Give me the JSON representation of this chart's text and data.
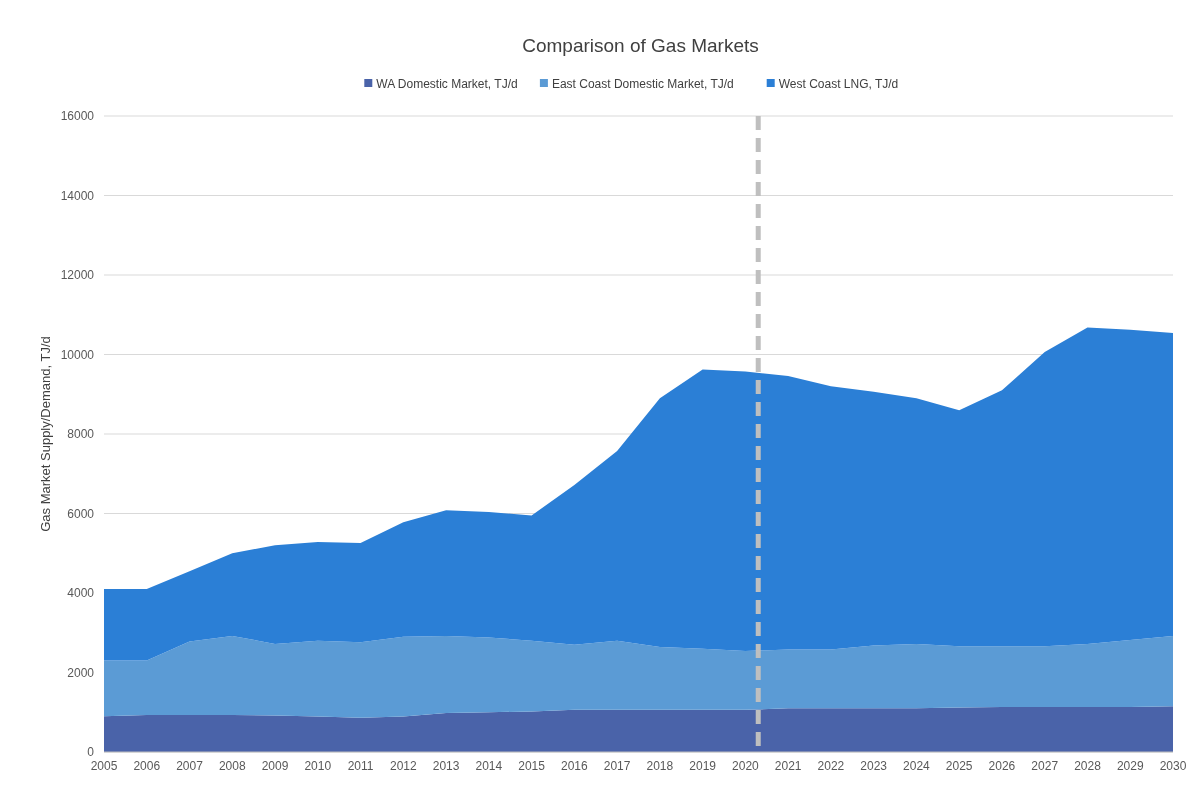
{
  "chart_data": {
    "type": "area",
    "title": "Comparison of Gas Markets",
    "ylabel": "Gas Market Supply/Demand, TJ/d",
    "stacked": true,
    "x": [
      2005,
      2006,
      2007,
      2008,
      2009,
      2010,
      2011,
      2012,
      2013,
      2014,
      2015,
      2016,
      2017,
      2018,
      2019,
      2020,
      2021,
      2022,
      2023,
      2024,
      2025,
      2026,
      2027,
      2028,
      2029,
      2030
    ],
    "series": [
      {
        "name": "WA Domestic Market, TJ/d",
        "color": "#4a63a9",
        "values": [
          900,
          930,
          930,
          930,
          920,
          890,
          860,
          890,
          980,
          1000,
          1020,
          1060,
          1060,
          1060,
          1060,
          1060,
          1100,
          1100,
          1100,
          1100,
          1120,
          1130,
          1130,
          1130,
          1130,
          1150
        ]
      },
      {
        "name": "East Coast Domestic Market, TJ/d",
        "color": "#5b9bd5",
        "values": [
          1400,
          1370,
          1850,
          1990,
          1800,
          1910,
          1900,
          2010,
          1940,
          1880,
          1780,
          1640,
          1740,
          1580,
          1540,
          1480,
          1480,
          1480,
          1580,
          1620,
          1540,
          1530,
          1530,
          1590,
          1690,
          1770
        ]
      },
      {
        "name": "West Coast LNG, TJ/d",
        "color": "#2b7fd6",
        "values": [
          1800,
          1800,
          1770,
          2080,
          2480,
          2480,
          2500,
          2880,
          3160,
          3160,
          3150,
          4020,
          4770,
          6260,
          7020,
          7030,
          6880,
          6620,
          6380,
          6180,
          5940,
          6440,
          7400,
          7960,
          7800,
          7620
        ]
      }
    ],
    "xlim": [
      2005,
      2030
    ],
    "xticks": [
      2005,
      2006,
      2007,
      2008,
      2009,
      2010,
      2011,
      2012,
      2013,
      2014,
      2015,
      2016,
      2017,
      2018,
      2019,
      2020,
      2021,
      2022,
      2023,
      2024,
      2025,
      2026,
      2027,
      2028,
      2029,
      2030
    ],
    "ylim": [
      0,
      16000
    ],
    "yticks": [
      0,
      2000,
      4000,
      6000,
      8000,
      10000,
      12000,
      14000,
      16000
    ],
    "ref_lines": [
      {
        "axis": "x",
        "value": 2020.3,
        "color": "#bfbfbf",
        "line_style": "dashed"
      }
    ],
    "grid": "y",
    "legend": "top"
  }
}
